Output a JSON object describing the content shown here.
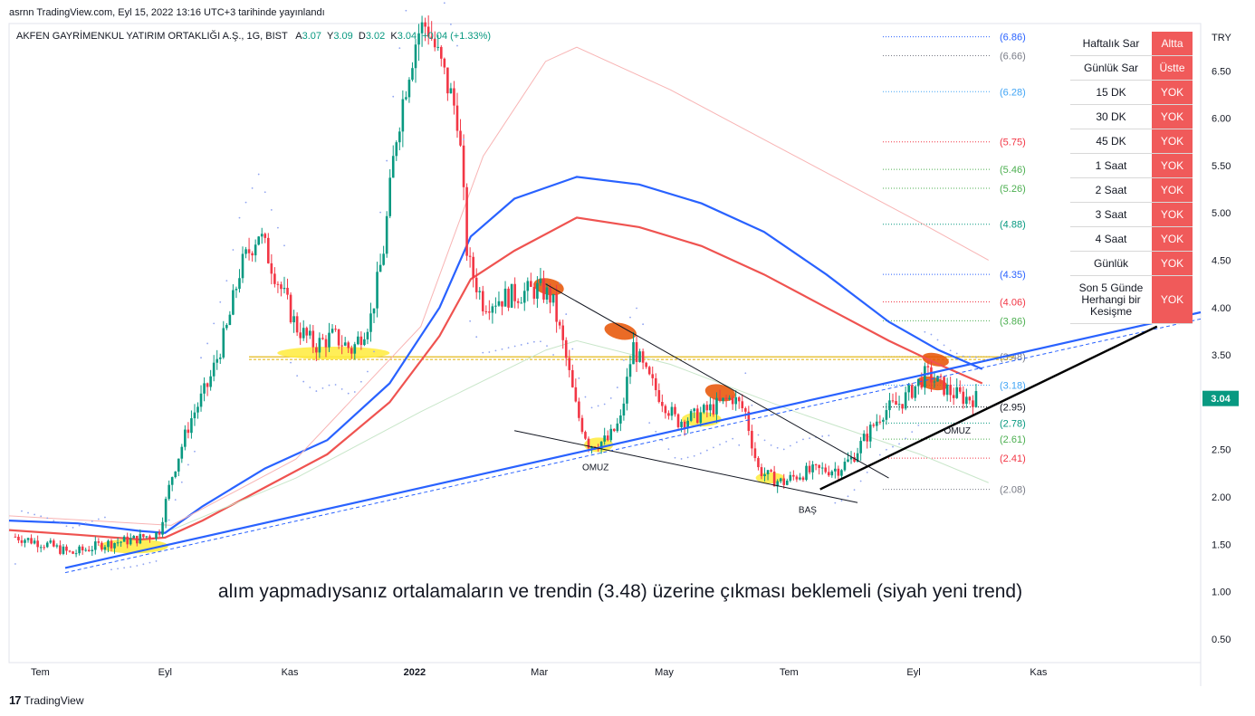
{
  "header": {
    "publish_line": "asrnn TradingView.com, Eyl 15, 2022 13:16 UTC+3 tarihinde yayınlandı"
  },
  "symbol": {
    "name": "AKFEN GAYRİMENKUL YATIRIM ORTAKLIĞI A.Ş., 1G, BIST",
    "a_label": "A",
    "a_value": "3.07",
    "y_label": "Y",
    "y_value": "3.09",
    "d_label": "D",
    "d_value": "3.02",
    "k_label": "K",
    "k_value": "3.04",
    "change": "+0.04 (+1.33%)"
  },
  "colors": {
    "up": "#089981",
    "down": "#f23645",
    "ma_blue": "#2962ff",
    "ma_red": "#ef5350",
    "table_red": "#f05a5a",
    "highlight_yellow": "#ffeb3b",
    "oval_orange": "#e65100"
  },
  "status_table": [
    {
      "label": "Haftalık Sar",
      "value": "Altta"
    },
    {
      "label": "Günlük Sar",
      "value": "Üstte"
    },
    {
      "label": "15 DK",
      "value": "YOK"
    },
    {
      "label": "30 DK",
      "value": "YOK"
    },
    {
      "label": "45 DK",
      "value": "YOK"
    },
    {
      "label": "1 Saat",
      "value": "YOK"
    },
    {
      "label": "2 Saat",
      "value": "YOK"
    },
    {
      "label": "3 Saat",
      "value": "YOK"
    },
    {
      "label": "4 Saat",
      "value": "YOK"
    },
    {
      "label": "Günlük",
      "value": "YOK"
    },
    {
      "label": "Son 5 Günde Herhangi bir Kesişme",
      "value": "YOK"
    }
  ],
  "annotation_text": "alım yapmadıysanız ortalamaların ve trendin (3.48) üzerine çıkması beklemeli (siyah yeni trend)",
  "footer": {
    "logo": "17",
    "brand": "TradingView"
  },
  "chart_data": {
    "type": "line",
    "currency": "TRY",
    "y_range": [
      0.25,
      7.0
    ],
    "y_ticks": [
      "6.50",
      "6.00",
      "5.50",
      "5.00",
      "4.50",
      "4.00",
      "3.50",
      "3.00",
      "2.50",
      "2.00",
      "1.50",
      "1.00",
      "0.50"
    ],
    "y_tick_values": [
      6.5,
      6.0,
      5.5,
      5.0,
      4.5,
      4.0,
      3.5,
      3.0,
      2.5,
      2.0,
      1.5,
      1.0,
      0.5
    ],
    "x_ticks": [
      "Tem",
      "Eyl",
      "Kas",
      "2022",
      "Mar",
      "May",
      "Tem",
      "Eyl",
      "Kas"
    ],
    "x_tick_values": [
      0.4,
      2.4,
      4.4,
      6.4,
      8.4,
      10.4,
      12.4,
      14.4,
      16.4
    ],
    "x_range": [
      -0.1,
      19.0
    ],
    "last_price": "3.04",
    "last_price_value": 3.04,
    "fib_levels": [
      {
        "label": "(6.86)",
        "value": 6.86,
        "color": "#2962ff"
      },
      {
        "label": "(6.66)",
        "value": 6.66,
        "color": "#787b86"
      },
      {
        "label": "(6.28)",
        "value": 6.28,
        "color": "#42a5f5"
      },
      {
        "label": "(5.75)",
        "value": 5.75,
        "color": "#f23645"
      },
      {
        "label": "(5.46)",
        "value": 5.46,
        "color": "#4caf50"
      },
      {
        "label": "(5.26)",
        "value": 5.26,
        "color": "#4caf50"
      },
      {
        "label": "(4.88)",
        "value": 4.88,
        "color": "#089981"
      },
      {
        "label": "(4.35)",
        "value": 4.35,
        "color": "#2962ff"
      },
      {
        "label": "(4.06)",
        "value": 4.06,
        "color": "#f23645"
      },
      {
        "label": "(3.86)",
        "value": 3.86,
        "color": "#4caf50"
      },
      {
        "label": "(3.48)",
        "value": 3.48,
        "color": "#787b86"
      },
      {
        "label": "(3.18)",
        "value": 3.18,
        "color": "#42a5f5"
      },
      {
        "label": "(2.95)",
        "value": 2.95,
        "color": "#131722"
      },
      {
        "label": "(2.78)",
        "value": 2.78,
        "color": "#089981"
      },
      {
        "label": "(2.61)",
        "value": 2.61,
        "color": "#4caf50"
      },
      {
        "label": "(2.41)",
        "value": 2.41,
        "color": "#f23645"
      },
      {
        "label": "(2.08)",
        "value": 2.08,
        "color": "#787b86"
      }
    ],
    "price_path": [
      [
        0.0,
        1.58
      ],
      [
        0.5,
        1.5
      ],
      [
        0.9,
        1.4
      ],
      [
        1.4,
        1.5
      ],
      [
        1.9,
        1.55
      ],
      [
        2.3,
        1.62
      ],
      [
        2.5,
        2.2
      ],
      [
        2.8,
        2.8
      ],
      [
        3.1,
        3.2
      ],
      [
        3.4,
        3.8
      ],
      [
        3.6,
        4.4
      ],
      [
        3.9,
        4.8
      ],
      [
        4.2,
        4.3
      ],
      [
        4.5,
        3.8
      ],
      [
        4.8,
        3.6
      ],
      [
        5.1,
        3.7
      ],
      [
        5.4,
        3.55
      ],
      [
        5.7,
        3.9
      ],
      [
        5.9,
        4.6
      ],
      [
        6.1,
        5.8
      ],
      [
        6.3,
        6.5
      ],
      [
        6.45,
        6.9
      ],
      [
        6.6,
        7.0
      ],
      [
        7.1,
        6.0
      ],
      [
        7.25,
        4.5
      ],
      [
        7.5,
        4.05
      ],
      [
        7.8,
        4.1
      ],
      [
        8.1,
        4.15
      ],
      [
        8.4,
        4.2
      ],
      [
        8.6,
        4.1
      ],
      [
        8.8,
        3.55
      ],
      [
        9.0,
        2.9
      ],
      [
        9.2,
        2.55
      ],
      [
        9.5,
        2.6
      ],
      [
        9.7,
        2.8
      ],
      [
        9.9,
        3.6
      ],
      [
        10.1,
        3.3
      ],
      [
        10.4,
        3.0
      ],
      [
        10.6,
        2.8
      ],
      [
        10.9,
        2.85
      ],
      [
        11.2,
        2.95
      ],
      [
        11.5,
        3.05
      ],
      [
        11.7,
        2.9
      ],
      [
        11.9,
        2.3
      ],
      [
        12.1,
        2.2
      ],
      [
        12.3,
        2.15
      ],
      [
        12.6,
        2.25
      ],
      [
        12.9,
        2.28
      ],
      [
        13.2,
        2.3
      ],
      [
        13.4,
        2.4
      ],
      [
        13.6,
        2.6
      ],
      [
        13.9,
        2.9
      ],
      [
        14.2,
        3.0
      ],
      [
        14.4,
        3.15
      ],
      [
        14.6,
        3.3
      ],
      [
        14.8,
        3.2
      ],
      [
        15.0,
        3.1
      ],
      [
        15.2,
        3.05
      ],
      [
        15.4,
        3.04
      ]
    ],
    "series": [
      {
        "name": "",
        "color": "#2962ff",
        "values": [
          [
            -0.1,
            1.75
          ],
          [
            1.0,
            1.72
          ],
          [
            2.0,
            1.64
          ],
          [
            2.4,
            1.62
          ],
          [
            3.0,
            1.9
          ],
          [
            4.0,
            2.3
          ],
          [
            5.0,
            2.6
          ],
          [
            6.0,
            3.2
          ],
          [
            6.8,
            4.0
          ],
          [
            7.3,
            4.75
          ],
          [
            8.0,
            5.15
          ],
          [
            9.0,
            5.38
          ],
          [
            10.0,
            5.3
          ],
          [
            11.0,
            5.1
          ],
          [
            12.0,
            4.8
          ],
          [
            13.0,
            4.35
          ],
          [
            14.0,
            3.85
          ],
          [
            14.8,
            3.55
          ],
          [
            15.5,
            3.35
          ]
        ]
      },
      {
        "name": "",
        "color": "#ef5350",
        "values": [
          [
            -0.1,
            1.65
          ],
          [
            1.0,
            1.6
          ],
          [
            2.0,
            1.55
          ],
          [
            2.4,
            1.57
          ],
          [
            3.0,
            1.75
          ],
          [
            4.0,
            2.1
          ],
          [
            5.0,
            2.45
          ],
          [
            6.0,
            3.0
          ],
          [
            6.8,
            3.7
          ],
          [
            7.3,
            4.3
          ],
          [
            8.0,
            4.6
          ],
          [
            9.0,
            4.95
          ],
          [
            10.0,
            4.85
          ],
          [
            11.0,
            4.65
          ],
          [
            12.0,
            4.35
          ],
          [
            13.0,
            4.0
          ],
          [
            14.0,
            3.65
          ],
          [
            14.8,
            3.4
          ],
          [
            15.5,
            3.2
          ]
        ]
      }
    ],
    "annotations": [
      {
        "text": "OMUZ",
        "x": 9.3,
        "y": 2.28
      },
      {
        "text": "BAŞ",
        "x": 12.7,
        "y": 1.83
      },
      {
        "text": "OMUZ",
        "x": 15.1,
        "y": 2.67
      }
    ]
  }
}
